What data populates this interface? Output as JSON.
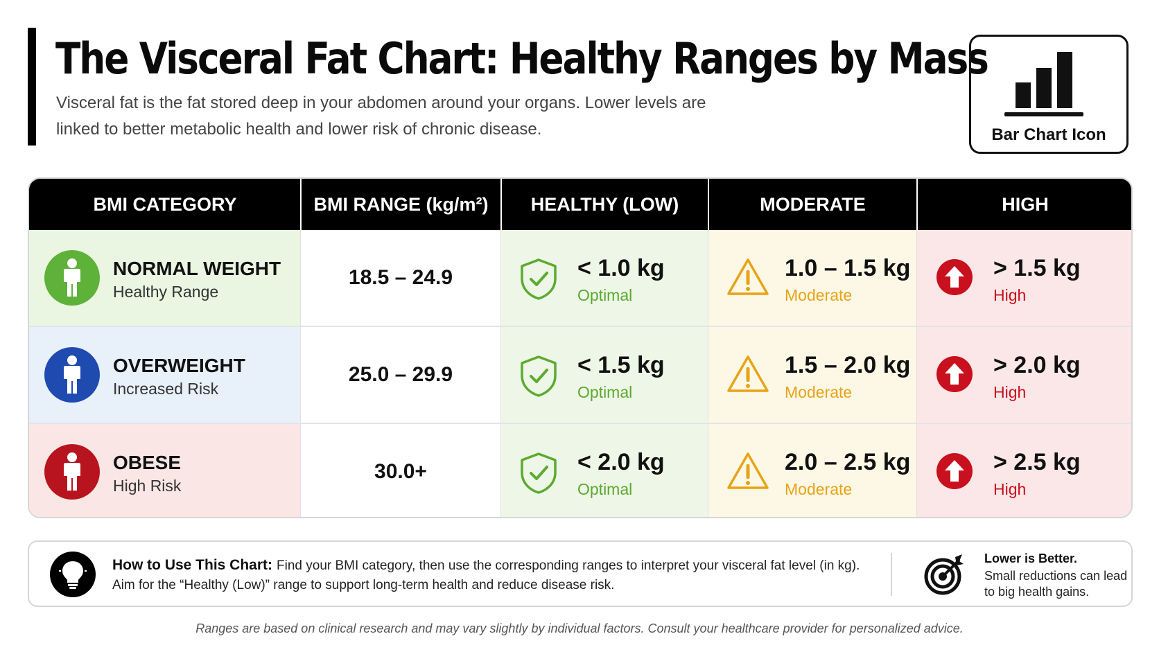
{
  "header": {
    "title": "The Visceral Fat Chart: Healthy Ranges by Mass",
    "subtitle": "Visceral fat is the fat stored deep in your abdomen around your organs.  Lower levels are linked to better metabolic health and lower risk of chronic disease."
  },
  "icon_card": {
    "label": "Bar Chart Icon",
    "icon": "bar-chart-icon"
  },
  "table": {
    "headers": [
      "BMI CATEGORY",
      "BMI RANGE (kg/m²)",
      "HEALTHY (LOW)",
      "MODERATE",
      "HIGH"
    ],
    "rows": [
      {
        "category": "NORMAL WEIGHT",
        "risk": "Healthy Range",
        "badge_color": "#5eb139",
        "row_tint": "#eaf5e2",
        "bmi_range": "18.5 – 24.9",
        "healthy": {
          "value": "< 1.0 kg",
          "label": "Optimal"
        },
        "moderate": {
          "value": "1.0 – 1.5 kg",
          "label": "Moderate"
        },
        "high": {
          "value": "> 1.5 kg",
          "label": "High"
        }
      },
      {
        "category": "OVERWEIGHT",
        "risk": "Increased Risk",
        "badge_color": "#1f4ab0",
        "row_tint": "#e8f0fa",
        "bmi_range": "25.0 – 29.9",
        "healthy": {
          "value": "< 1.5 kg",
          "label": "Optimal"
        },
        "moderate": {
          "value": "1.5 – 2.0 kg",
          "label": "Moderate"
        },
        "high": {
          "value": "> 2.0 kg",
          "label": "High"
        }
      },
      {
        "category": "OBESE",
        "risk": "High Risk",
        "badge_color": "#b81420",
        "row_tint": "#fbe6e6",
        "bmi_range": "30.0+",
        "healthy": {
          "value": "< 2.0 kg",
          "label": "Optimal"
        },
        "moderate": {
          "value": "2.0 – 2.5 kg",
          "label": "Moderate"
        },
        "high": {
          "value": "> 2.5 kg",
          "label": "High"
        }
      }
    ],
    "column_tints": {
      "healthy": "#eef6e8",
      "moderate": "#fdf7e6",
      "high": "#fbe7e7"
    },
    "icons": {
      "category": "person-icon",
      "healthy": "shield-check-icon",
      "moderate": "warning-triangle-icon",
      "high": "arrow-up-circle-icon"
    }
  },
  "howto": {
    "title": "How to Use This Chart:",
    "text": "Find your BMI category, then use the corresponding ranges to interpret your visceral fat level (in kg). Aim for the “Healthy (Low)” range to support long-term health and reduce disease risk.",
    "icon": "lightbulb-icon",
    "side_title": "Lower is Better.",
    "side_text": "Small reductions can lead to big health gains.",
    "side_icon": "target-icon"
  },
  "footnote": "Ranges are based on clinical research and may vary slightly by individual factors. Consult your healthcare provider for personalized advice.",
  "colors": {
    "green": "#5caa2e",
    "amber": "#e6a416",
    "red": "#c8101e"
  }
}
